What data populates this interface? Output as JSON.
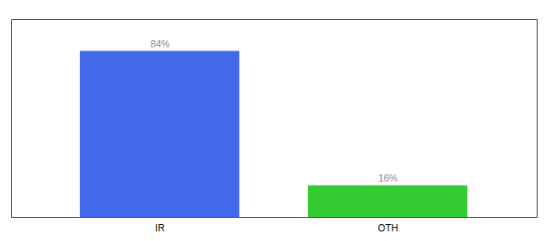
{
  "chart_data": {
    "type": "bar",
    "categories": [
      "IR",
      "OTH"
    ],
    "values": [
      84,
      16
    ],
    "value_labels": [
      "84%",
      "16%"
    ],
    "colors": [
      "#4169e8",
      "#33cc33"
    ],
    "ylim": [
      0,
      100
    ],
    "data_labels": true,
    "tick_labels": "x"
  }
}
